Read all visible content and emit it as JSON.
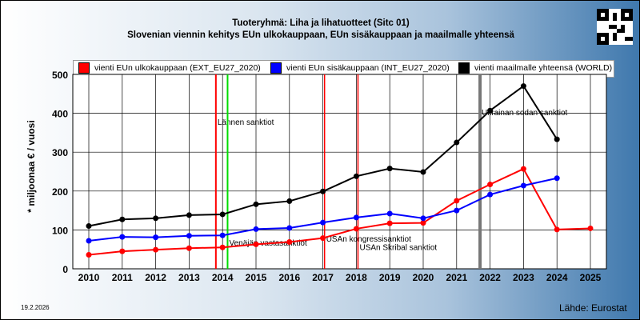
{
  "header": {
    "title": "Tuoteryhmä: Liha ja lihatuotteet (Sitc 01)",
    "subtitle": "Slovenian viennin kehitys EUn ulkokauppaan, EUn sisäkauppaan ja maailmalle yhteensä"
  },
  "footer": {
    "date": "19.2.2026",
    "source": "Lähde: Eurostat"
  },
  "chart_data": {
    "type": "line",
    "ylabel": "* miljoonaa € / vuosi",
    "xlabel": "",
    "ylim": [
      0,
      500
    ],
    "yticks": [
      0,
      100,
      200,
      300,
      400,
      500
    ],
    "xlim": [
      2010,
      2025
    ],
    "xticks": [
      2010,
      2011,
      2012,
      2013,
      2014,
      2015,
      2016,
      2017,
      2018,
      2019,
      2020,
      2021,
      2022,
      2023,
      2024,
      2025
    ],
    "grid": true,
    "legend_position": "top",
    "series": [
      {
        "name": "vienti EUn ulkokauppaan (EXT_EU27_2020)",
        "color": "#ff0000",
        "x": [
          2010,
          2011,
          2012,
          2013,
          2014,
          2015,
          2016,
          2017,
          2018,
          2019,
          2020,
          2021,
          2022,
          2023,
          2024,
          2025
        ],
        "values": [
          36,
          45,
          49,
          53,
          55,
          63,
          69,
          79,
          103,
          117,
          118,
          175,
          217,
          257,
          101,
          104
        ]
      },
      {
        "name": "vienti EUn sisäkauppaan (INT_EU27_2020)",
        "color": "#0000ff",
        "x": [
          2010,
          2011,
          2012,
          2013,
          2014,
          2015,
          2016,
          2017,
          2018,
          2019,
          2020,
          2021,
          2022,
          2023,
          2024
        ],
        "values": [
          72,
          82,
          81,
          85,
          86,
          102,
          105,
          119,
          132,
          142,
          130,
          150,
          191,
          214,
          233
        ]
      },
      {
        "name": "vienti maailmalle yhteensä (WORLD)",
        "color": "#000000",
        "x": [
          2010,
          2011,
          2012,
          2013,
          2014,
          2015,
          2016,
          2017,
          2018,
          2019,
          2020,
          2021,
          2022,
          2023,
          2024
        ],
        "values": [
          110,
          127,
          130,
          138,
          140,
          166,
          174,
          199,
          238,
          258,
          249,
          325,
          407,
          470,
          333
        ]
      }
    ],
    "events": [
      {
        "x": 2013.8,
        "color": "#ff0000",
        "width": 2,
        "label": "Lännen sanktiot",
        "label_y": 370
      },
      {
        "x": 2014.15,
        "color": "#00dd00",
        "width": 2,
        "label": "Venäjän vastasanktiot",
        "label_y": 60
      },
      {
        "x": 2017.05,
        "color": "#ff0000",
        "width": 1.5,
        "label": "USAn kongressisanktiot",
        "label_y": 70
      },
      {
        "x": 2018.05,
        "color": "#ff0000",
        "width": 1.5,
        "label": "USAn Skribal sanktiot",
        "label_y": 48
      },
      {
        "x": 2021.7,
        "color": "#777777",
        "width": 4,
        "label": "Ukrainan sodan sanktiot",
        "label_y": 395
      }
    ]
  }
}
